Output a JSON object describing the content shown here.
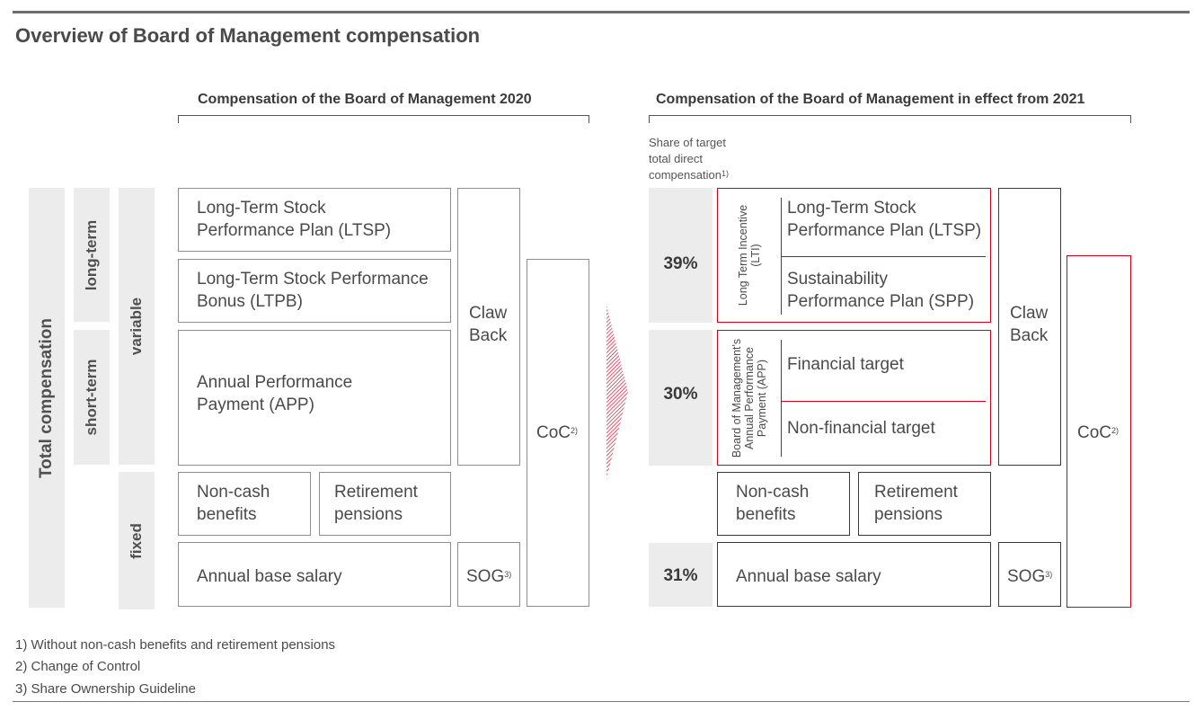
{
  "title": "Overview of Board of Management compensation",
  "left": {
    "heading": "Compensation of the Board of Management 2020",
    "labels": {
      "total": "Total compensation",
      "long_term": "long-term",
      "short_term": "short-term",
      "variable": "variable",
      "fixed": "fixed"
    },
    "ltsp": "Long-Term Stock Performance Plan (LTSP)",
    "ltpb": "Long-Term Stock Performance Bonus (LTPB)",
    "app": "Annual Performance Payment (APP)",
    "clawback": "Claw Back",
    "coc": "CoC",
    "coc_sup": "2)",
    "noncash": "Non-cash benefits",
    "retirement": "Retirement pensions",
    "base": "Annual base salary",
    "sog": "SOG",
    "sog_sup": "3)"
  },
  "right": {
    "heading": "Compensation of the Board of Management in effect from 2021",
    "share_note_line1": "Share of target",
    "share_note_line2": "total direct",
    "share_note_line3": "compensation",
    "share_note_sup": "1)",
    "pct_lti": "39%",
    "pct_app": "30%",
    "pct_base": "31%",
    "lti_label": "Long Term Incentive (LTI)",
    "app_label": "Board of Management's Annual Performance Payment (APP)",
    "ltsp": "Long-Term Stock Performance Plan (LTSP)",
    "spp": "Sustainability Performance Plan (SPP)",
    "financial": "Financial target",
    "nonfinancial": "Non-financial target",
    "clawback": "Claw Back",
    "coc": "CoC",
    "coc_sup": "2)",
    "noncash": "Non-cash benefits",
    "retirement": "Retirement pensions",
    "base": "Annual base salary",
    "sog": "SOG",
    "sog_sup": "3)"
  },
  "footnotes": [
    "1) Without non-cash benefits and retirement pensions",
    "2) Change of Control",
    "3) Share Ownership Guideline"
  ],
  "colors": {
    "accent_red": "#d6001c",
    "label_gray": "#ececec",
    "text": "#4a4a4a"
  },
  "icons": {
    "arrow": "hatched-arrow-icon"
  }
}
